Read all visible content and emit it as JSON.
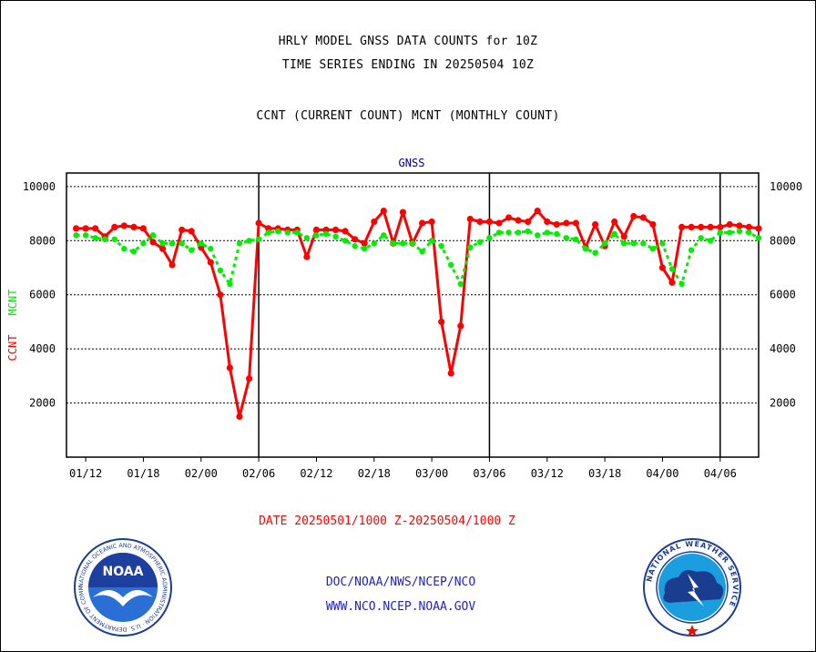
{
  "header": {
    "title_line1": "HRLY MODEL GNSS DATA COUNTS for 10Z",
    "title_line2": "TIME SERIES ENDING IN 20250504 10Z",
    "subtitle": "CCNT (CURRENT COUNT) MCNT (MONTHLY COUNT)",
    "plot_label": "GNSS"
  },
  "footer": {
    "date_range": "DATE 20250501/1000 Z-20250504/1000 Z",
    "org_path": "DOC/NOAA/NWS/NCEP/NCO",
    "website": "WWW.NCO.NCEP.NOAA.GOV",
    "noaa_logo_text": "NOAA",
    "noaa_ring_text": "NATIONAL OCEANIC AND ATMOSPHERIC ADMINISTRATION · U.S. DEPARTMENT OF COMMERCE",
    "nws_ring_text": "NATIONAL WEATHER SERVICE"
  },
  "colors": {
    "ccnt": "#ff0000",
    "mcnt": "#00ee00",
    "axis": "#000000",
    "plot_label": "#00008b",
    "footer_red": "#ff0000",
    "footer_blue": "#1f1fcc"
  },
  "chart_data": {
    "type": "line",
    "title": "HRLY MODEL GNSS DATA COUNTS for 10Z",
    "ylabel_left": [
      "CCNT",
      "MCNT"
    ],
    "ylim": [
      0,
      10500
    ],
    "yticks": [
      2000,
      4000,
      6000,
      8000,
      10000
    ],
    "grid": true,
    "xticks": [
      "01/12",
      "01/18",
      "02/00",
      "02/06",
      "02/12",
      "02/18",
      "03/00",
      "03/06",
      "03/12",
      "03/18",
      "04/00",
      "04/06"
    ],
    "x_domain": [
      "01/10",
      "04/10"
    ],
    "x_step_hours": 1,
    "day_boundaries": [
      "02/06",
      "03/06",
      "04/06"
    ],
    "series": [
      {
        "name": "CCNT",
        "color": "#ff0000",
        "values": [
          8450,
          8450,
          8450,
          8150,
          8500,
          8550,
          8500,
          8450,
          7950,
          7700,
          7100,
          8400,
          8350,
          7750,
          7200,
          6000,
          3300,
          1500,
          2900,
          8650,
          8450,
          8450,
          8400,
          8400,
          7400,
          8400,
          8400,
          8400,
          8350,
          8050,
          7900,
          8700,
          9100,
          7900,
          9050,
          7900,
          8650,
          8700,
          5000,
          3100,
          4850,
          8800,
          8700,
          8700,
          8650,
          8850,
          8750,
          8700,
          9100,
          8700,
          8600,
          8650,
          8650,
          7750,
          8600,
          7800,
          8700,
          8150,
          8900,
          8850,
          8600,
          7000,
          6450,
          8500,
          8500,
          8500,
          8500,
          8500,
          8600,
          8550,
          8500,
          8450
        ]
      },
      {
        "name": "MCNT",
        "color": "#00ee00",
        "values": [
          8200,
          8200,
          8100,
          8050,
          8050,
          7700,
          7600,
          7900,
          8200,
          7900,
          7900,
          7900,
          7650,
          7900,
          7700,
          6900,
          6400,
          7900,
          8000,
          8050,
          8300,
          8350,
          8300,
          8300,
          8100,
          8200,
          8250,
          8150,
          8000,
          7800,
          7700,
          7900,
          8200,
          7900,
          7900,
          7900,
          7600,
          8000,
          7800,
          7100,
          6400,
          7750,
          7950,
          8100,
          8300,
          8300,
          8300,
          8350,
          8200,
          8300,
          8250,
          8100,
          8050,
          7700,
          7550,
          7900,
          8250,
          7900,
          7900,
          7900,
          7700,
          7900,
          6950,
          6400,
          7650,
          8100,
          8000,
          8300,
          8300,
          8350,
          8300,
          8100
        ]
      }
    ]
  }
}
